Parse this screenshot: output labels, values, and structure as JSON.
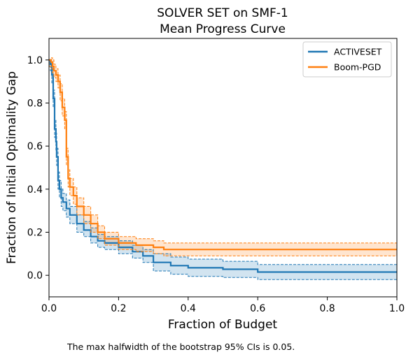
{
  "chart_data": {
    "type": "line",
    "title": [
      "SOLVER SET on SMF-1",
      "Mean Progress Curve"
    ],
    "xlabel": "Fraction of Budget",
    "ylabel": "Fraction of Initial Optimality Gap",
    "xlim": [
      0,
      1
    ],
    "ylim": [
      -0.1,
      1.1
    ],
    "xticks": [
      "0.0",
      "0.2",
      "0.4",
      "0.6",
      "0.8",
      "1.0"
    ],
    "yticks": [
      "0.0",
      "0.2",
      "0.4",
      "0.6",
      "0.8",
      "1.0"
    ],
    "legend_position": "top-right",
    "footnote": "The max halfwidth of the bootstrap 95% CIs is 0.05.",
    "series": [
      {
        "name": "ACTIVESET",
        "color": "#1f77b4",
        "x": [
          0.0,
          0.004,
          0.008,
          0.012,
          0.016,
          0.02,
          0.022,
          0.026,
          0.03,
          0.035,
          0.04,
          0.05,
          0.06,
          0.08,
          0.1,
          0.12,
          0.14,
          0.16,
          0.2,
          0.24,
          0.27,
          0.3,
          0.35,
          0.4,
          0.5,
          0.6,
          1.0
        ],
        "y": [
          1.0,
          0.98,
          0.93,
          0.82,
          0.68,
          0.62,
          0.55,
          0.44,
          0.4,
          0.36,
          0.34,
          0.31,
          0.28,
          0.24,
          0.21,
          0.18,
          0.16,
          0.15,
          0.13,
          0.11,
          0.09,
          0.06,
          0.045,
          0.035,
          0.028,
          0.015,
          0.015
        ],
        "lower": [
          0.97,
          0.95,
          0.89,
          0.78,
          0.64,
          0.58,
          0.51,
          0.4,
          0.36,
          0.32,
          0.3,
          0.27,
          0.24,
          0.2,
          0.18,
          0.15,
          0.13,
          0.12,
          0.1,
          0.08,
          0.06,
          0.02,
          0.005,
          -0.005,
          -0.01,
          -0.02,
          -0.02
        ],
        "upper": [
          1.0,
          1.0,
          0.97,
          0.86,
          0.72,
          0.66,
          0.59,
          0.48,
          0.44,
          0.4,
          0.38,
          0.35,
          0.32,
          0.28,
          0.25,
          0.22,
          0.19,
          0.18,
          0.16,
          0.14,
          0.12,
          0.1,
          0.085,
          0.075,
          0.065,
          0.05,
          0.05
        ]
      },
      {
        "name": "Boom-PGD",
        "color": "#ff7f0e",
        "x": [
          0.0,
          0.006,
          0.01,
          0.014,
          0.02,
          0.026,
          0.032,
          0.038,
          0.045,
          0.05,
          0.055,
          0.06,
          0.07,
          0.08,
          0.1,
          0.12,
          0.14,
          0.16,
          0.2,
          0.25,
          0.3,
          0.33,
          0.4,
          0.6,
          1.0
        ],
        "y": [
          1.0,
          0.99,
          0.97,
          0.95,
          0.93,
          0.9,
          0.85,
          0.78,
          0.72,
          0.55,
          0.45,
          0.41,
          0.37,
          0.32,
          0.28,
          0.24,
          0.2,
          0.17,
          0.15,
          0.14,
          0.13,
          0.12,
          0.12,
          0.12,
          0.12
        ],
        "lower": [
          0.97,
          0.96,
          0.94,
          0.92,
          0.9,
          0.87,
          0.81,
          0.74,
          0.68,
          0.51,
          0.41,
          0.37,
          0.33,
          0.28,
          0.24,
          0.2,
          0.17,
          0.14,
          0.12,
          0.11,
          0.1,
          0.09,
          0.09,
          0.09,
          0.09
        ],
        "upper": [
          1.0,
          1.01,
          1.0,
          0.98,
          0.96,
          0.93,
          0.89,
          0.82,
          0.76,
          0.59,
          0.49,
          0.45,
          0.41,
          0.36,
          0.32,
          0.28,
          0.23,
          0.2,
          0.18,
          0.17,
          0.16,
          0.15,
          0.15,
          0.15,
          0.15
        ]
      }
    ]
  }
}
